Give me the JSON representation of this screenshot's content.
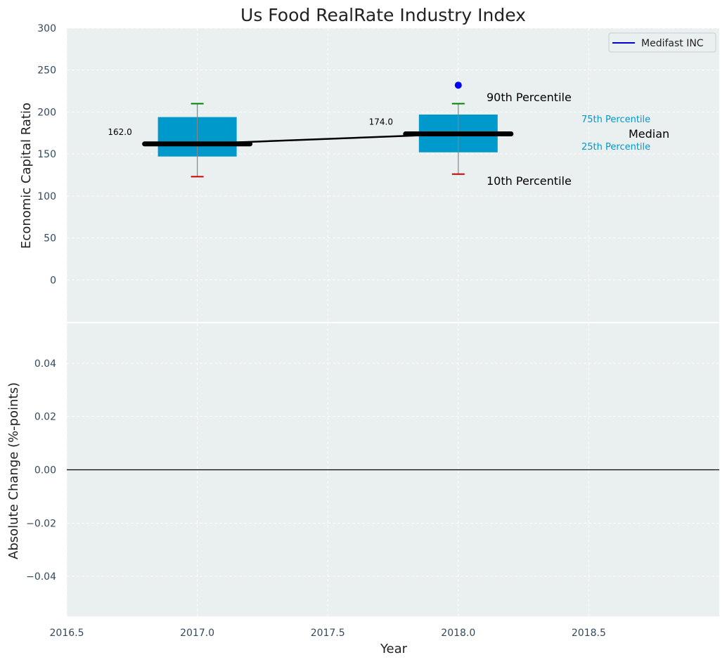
{
  "chart_data": [
    {
      "type": "box",
      "title": "Us Food RealRate Industry Index",
      "ylabel": "Economic Capital Ratio",
      "xlim": [
        2016.5,
        2019.0
      ],
      "ylim": [
        -50,
        300
      ],
      "yticks": [
        0,
        50,
        100,
        150,
        200,
        250,
        300
      ],
      "grid": true,
      "legend": {
        "placement": "top-right",
        "entries": [
          {
            "label": "Medifast INC",
            "color": "#0000cc"
          }
        ]
      },
      "boxes": [
        {
          "x": 2017.0,
          "p10": 123,
          "q1": 147,
          "median": 162,
          "q3": 194,
          "p90": 210,
          "median_label": "162.0"
        },
        {
          "x": 2018.0,
          "p10": 126,
          "q1": 152,
          "median": 174,
          "q3": 197,
          "p90": 210,
          "median_label": "174.0"
        }
      ],
      "median_line": {
        "x": [
          2017.0,
          2018.0
        ],
        "y": [
          162,
          174
        ]
      },
      "series": [
        {
          "name": "Medifast INC",
          "x": [
            2018.0
          ],
          "y": [
            232
          ],
          "color": "#0000ff"
        }
      ],
      "legend_key": {
        "p90": "90th Percentile",
        "p10": "10th Percentile",
        "q3": "75th Percentile",
        "q1": "25th Percentile",
        "median": "Median"
      },
      "colors": {
        "box": "#0099cc",
        "whisker_top": "#008000",
        "whisker_bottom": "#cc0000",
        "background": "#eaeff0",
        "key_text": "#0099cc"
      }
    },
    {
      "type": "line",
      "xlabel": "Year",
      "ylabel": "Absolute Change (%-points)",
      "xlim": [
        2016.5,
        2019.0
      ],
      "xticks": [
        2016.5,
        2017.0,
        2017.5,
        2018.0,
        2018.5
      ],
      "xtick_labels": [
        "2016.5",
        "2017.0",
        "2017.5",
        "2018.0",
        "2018.5"
      ],
      "ylim": [
        -0.055,
        0.055
      ],
      "yticks": [
        0.04,
        0.02,
        0.0,
        -0.02,
        -0.04
      ],
      "ytick_labels": [
        "0.04",
        "0.02",
        "0.00",
        "−0.02",
        "−0.04"
      ],
      "grid": true,
      "reference_line": {
        "y": 0.0,
        "color": "#000000"
      },
      "series": []
    }
  ]
}
